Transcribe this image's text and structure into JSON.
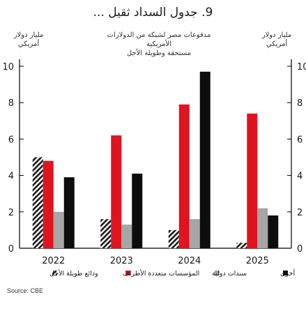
{
  "title": "9. جدول السداد ثقيل ...",
  "axis_headers": {
    "left": "مليار دولار أمريكي",
    "middle": "مدفوعات مصر لشبكة من الدولارات الأمريكية\nمستحقة وطويلة الأجل",
    "right": "مليار دولار أمريكي"
  },
  "source": "Source: CBE",
  "colors": {
    "red": "#e0141e",
    "gray": "#a6a6a6",
    "black": "#0d0d0d",
    "hatch": "#1a1a1a"
  },
  "chart_data": {
    "type": "bar",
    "categories": [
      "2022",
      "2023",
      "2024",
      "2025"
    ],
    "ylim": [
      0,
      10
    ],
    "yticks": [
      0,
      2,
      4,
      6,
      8,
      10
    ],
    "series": [
      {
        "name": "ودائع طويلة الأجل",
        "key": "hatch",
        "values": [
          5.0,
          1.6,
          1.0,
          0.3
        ]
      },
      {
        "name": "المؤسسات متعددة الأطراف",
        "key": "red",
        "values": [
          4.8,
          6.2,
          7.9,
          7.4
        ]
      },
      {
        "name": "سندات دولية",
        "key": "gray",
        "values": [
          2.0,
          1.3,
          1.6,
          2.2
        ]
      },
      {
        "name": "أخرى",
        "key": "black",
        "values": [
          3.9,
          4.1,
          9.7,
          1.8
        ]
      }
    ],
    "legend_position": "bottom"
  }
}
